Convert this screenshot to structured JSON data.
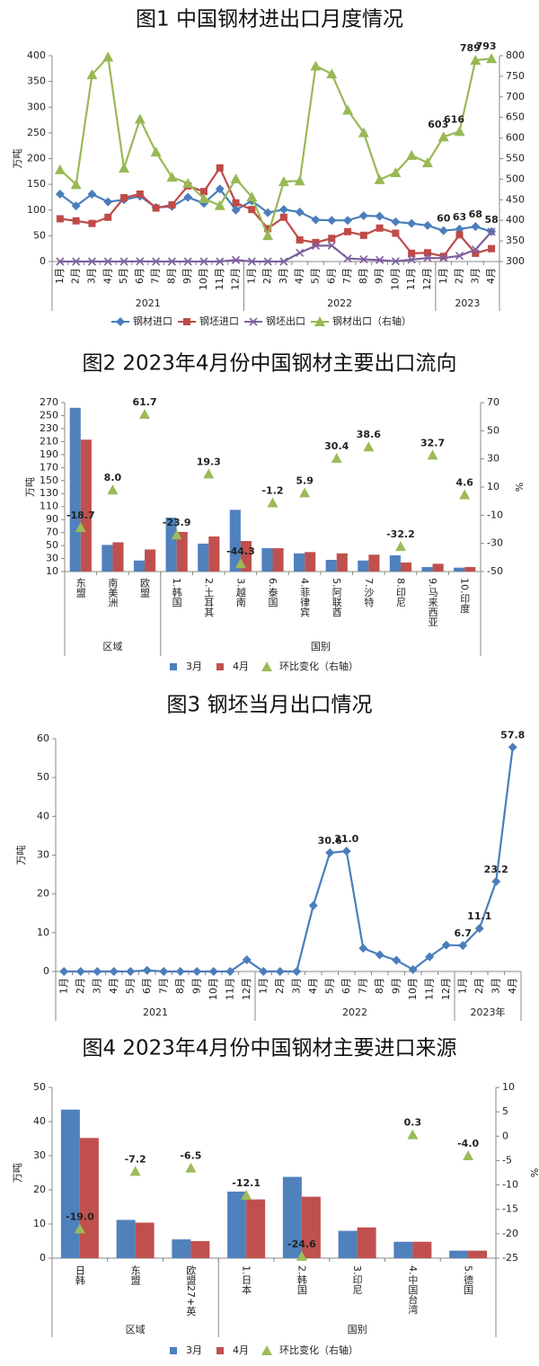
{
  "chart_data": [
    {
      "type": "combo",
      "title": "图1 中国钢材进出口月度情况",
      "y_label": "万吨",
      "categories": [
        "1月",
        "2月",
        "3月",
        "4月",
        "5月",
        "6月",
        "7月",
        "8月",
        "9月",
        "10月",
        "11月",
        "12月",
        "1月",
        "2月",
        "3月",
        "4月",
        "5月",
        "6月",
        "7月",
        "8月",
        "9月",
        "10月",
        "11月",
        "12月",
        "1月",
        "2月",
        "3月",
        "4月"
      ],
      "category_groups": [
        {
          "name": "2021",
          "count": 12
        },
        {
          "name": "2022",
          "count": 12
        },
        {
          "name": "2023",
          "count": 4
        }
      ],
      "ylim": [
        0,
        400
      ],
      "yticks": [
        0,
        50,
        100,
        150,
        200,
        250,
        300,
        350,
        400
      ],
      "y2lim": [
        300,
        800
      ],
      "y2ticks": [
        300,
        350,
        400,
        450,
        500,
        550,
        600,
        650,
        700,
        750,
        800
      ],
      "series": [
        {
          "name": "钢材进口",
          "type": "line",
          "marker": "diamond",
          "color": "#4a7ebb",
          "values": [
            131,
            108,
            131,
            116,
            120,
            127,
            105,
            107,
            125,
            113,
            141,
            100,
            118,
            95,
            101,
            96,
            81,
            80,
            80,
            89,
            88,
            77,
            74,
            70,
            60,
            63,
            68,
            58
          ],
          "value_labels": [
            null,
            null,
            null,
            null,
            null,
            null,
            null,
            null,
            null,
            null,
            null,
            null,
            null,
            null,
            null,
            null,
            null,
            null,
            null,
            null,
            null,
            null,
            null,
            null,
            "60",
            "63",
            "68",
            "58"
          ]
        },
        {
          "name": "钢坯进口",
          "type": "line",
          "marker": "square",
          "color": "#be4b48",
          "values": [
            83,
            79,
            74,
            86,
            124,
            131,
            104,
            110,
            147,
            136,
            182,
            114,
            101,
            64,
            86,
            42,
            37,
            45,
            58,
            51,
            65,
            55,
            16,
            17,
            10,
            52,
            16,
            25
          ]
        },
        {
          "name": "钢坯出口",
          "type": "line",
          "marker": "x",
          "color": "#7d60a0",
          "values": [
            0,
            0,
            0,
            0,
            0,
            0.3,
            0,
            0,
            0,
            0,
            0,
            3,
            0,
            0,
            0,
            17,
            30.6,
            31,
            6,
            4.3,
            2.9,
            0.5,
            3.8,
            6.8,
            6.7,
            11.1,
            23.2,
            57.8
          ]
        },
        {
          "name": "钢材出口（右轴）",
          "type": "line",
          "marker": "triangle",
          "color": "#98b954",
          "axis": "y2",
          "values": [
            523,
            487,
            754,
            797,
            527,
            646,
            566,
            505,
            490,
            453,
            436,
            501,
            457,
            363,
            494,
            496,
            775,
            756,
            668,
            613,
            499,
            516,
            558,
            540,
            603,
            616,
            789,
            793
          ],
          "value_labels": [
            null,
            null,
            null,
            null,
            null,
            null,
            null,
            null,
            null,
            null,
            null,
            null,
            null,
            null,
            null,
            null,
            null,
            null,
            null,
            null,
            null,
            null,
            null,
            null,
            "603",
            "616",
            "789",
            "793"
          ]
        }
      ]
    },
    {
      "type": "combo",
      "title": "图2 2023年4月份中国钢材主要出口流向",
      "y_label": "万吨",
      "y2_label": "%",
      "categories": [
        "东盟",
        "南美洲",
        "欧盟",
        "1.韩国",
        "2.土耳其",
        "3.越南",
        "6.泰国",
        "4.菲律宾",
        "5.阿联酋",
        "7.沙特",
        "8.印尼",
        "9.马来西亚",
        "10.印度"
      ],
      "category_groups": [
        {
          "name": "区域",
          "count": 3
        },
        {
          "name": "国别",
          "count": 10
        }
      ],
      "ylim": [
        10,
        270
      ],
      "yticks": [
        10,
        30,
        50,
        70,
        90,
        110,
        130,
        150,
        170,
        190,
        210,
        230,
        250,
        270
      ],
      "y2lim": [
        -50,
        70
      ],
      "y2ticks": [
        -50,
        -30,
        -10,
        10,
        30,
        50,
        70
      ],
      "series": [
        {
          "name": "3月",
          "type": "bar",
          "color": "#4f81bd",
          "values": [
            262,
            51,
            27,
            93,
            53,
            105,
            46,
            38,
            28,
            27,
            35,
            17,
            16
          ]
        },
        {
          "name": "4月",
          "type": "bar",
          "color": "#c0504d",
          "values": [
            213,
            55,
            44,
            71,
            64,
            57,
            46,
            40,
            38,
            36,
            24,
            22,
            17
          ]
        },
        {
          "name": "环比变化（右轴）",
          "type": "scatter",
          "marker": "triangle",
          "color": "#9bbb59",
          "axis": "y2",
          "values": [
            -18.7,
            8.0,
            61.7,
            -23.9,
            19.3,
            -44.3,
            -1.2,
            5.9,
            30.4,
            38.6,
            -32.2,
            32.7,
            4.6
          ],
          "value_labels": [
            "-18.7",
            "8.0",
            "61.7",
            "-23.9",
            "19.3",
            "-44.3",
            "-1.2",
            "5.9",
            "30.4",
            "38.6",
            "-32.2",
            "32.7",
            "4.6"
          ]
        }
      ]
    },
    {
      "type": "line",
      "title": "图3 钢坯当月出口情况",
      "y_label": "万吨",
      "categories": [
        "1月",
        "2月",
        "3月",
        "4月",
        "5月",
        "6月",
        "7月",
        "8月",
        "9月",
        "10月",
        "11月",
        "12月",
        "1月",
        "2月",
        "3月",
        "4月",
        "5月",
        "6月",
        "7月",
        "8月",
        "9月",
        "10月",
        "11月",
        "12月",
        "1月",
        "2月",
        "3月",
        "4月"
      ],
      "category_groups": [
        {
          "name": "2021",
          "count": 12
        },
        {
          "name": "2022",
          "count": 12
        },
        {
          "name": "2023年",
          "count": 4
        }
      ],
      "ylim": [
        0,
        60
      ],
      "yticks": [
        0,
        10,
        20,
        30,
        40,
        50,
        60
      ],
      "series": [
        {
          "type": "line",
          "marker": "diamond",
          "color": "#4a7ebb",
          "values": [
            0,
            0,
            0,
            0,
            0,
            0.3,
            0,
            0,
            0,
            0,
            0,
            3,
            0,
            0,
            0,
            17,
            30.6,
            31.0,
            6,
            4.3,
            2.9,
            0.5,
            3.8,
            6.8,
            6.7,
            11.1,
            23.2,
            57.8
          ],
          "value_labels": [
            null,
            null,
            null,
            null,
            null,
            null,
            null,
            null,
            null,
            null,
            null,
            null,
            null,
            null,
            null,
            null,
            "30.6",
            "31.0",
            null,
            null,
            null,
            null,
            null,
            null,
            "6.7",
            "11.1",
            "23.2",
            "57.8"
          ]
        }
      ]
    },
    {
      "type": "combo",
      "title": "图4 2023年4月份中国钢材主要进口来源",
      "y_label": "万吨",
      "y2_label": "%",
      "categories": [
        "日韩",
        "东盟",
        "欧盟27+英",
        "1.日本",
        "2.韩国",
        "3.印尼",
        "4.中国台湾",
        "5.德国"
      ],
      "category_groups": [
        {
          "name": "区域",
          "count": 3
        },
        {
          "name": "国别",
          "count": 5
        }
      ],
      "ylim": [
        0,
        50
      ],
      "yticks": [
        0,
        10,
        20,
        30,
        40,
        50
      ],
      "y2lim": [
        -25,
        10
      ],
      "y2ticks": [
        -25,
        -20,
        -15,
        -10,
        -5,
        0,
        5,
        10
      ],
      "series": [
        {
          "name": "3月",
          "type": "bar",
          "color": "#4f81bd",
          "values": [
            43.5,
            11.2,
            5.5,
            19.5,
            23.8,
            8,
            4.8,
            2.2
          ]
        },
        {
          "name": "4月",
          "type": "bar",
          "color": "#c0504d",
          "values": [
            35.2,
            10.4,
            5.0,
            17.2,
            18,
            9,
            4.8,
            2.2
          ]
        },
        {
          "name": "环比变化（右轴）",
          "type": "scatter",
          "marker": "triangle",
          "color": "#9bbb59",
          "axis": "y2",
          "values": [
            -19.0,
            -7.2,
            -6.5,
            -12.1,
            -24.6,
            null,
            0.3,
            -4.0
          ],
          "value_labels": [
            "-19.0",
            "-7.2",
            "-6.5",
            "-12.1",
            "-24.6",
            null,
            "0.3",
            "-4.0"
          ]
        }
      ]
    }
  ]
}
